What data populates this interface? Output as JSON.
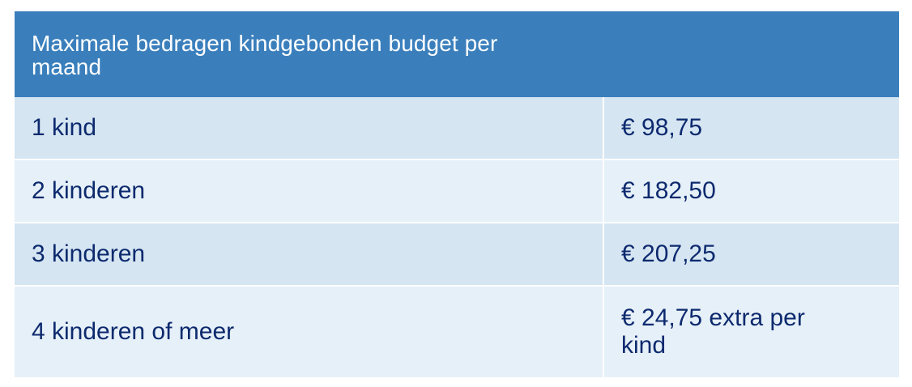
{
  "table": {
    "header": "Maximale bedragen kindgebonden budget per maand",
    "rows": [
      {
        "label": "1 kind",
        "value": "€ 98,75"
      },
      {
        "label": "2 kinderen",
        "value": "€ 182,50"
      },
      {
        "label": "3 kinderen",
        "value": "€ 207,25"
      },
      {
        "label": "4 kinderen of meer",
        "value": "€ 24,75 extra per kind"
      }
    ]
  },
  "colors": {
    "header_bg": "#3a7fbc",
    "row_bg_dark": "#d5e5f2",
    "row_bg_light": "#e6f0f8",
    "text": "#0d2a6e"
  }
}
